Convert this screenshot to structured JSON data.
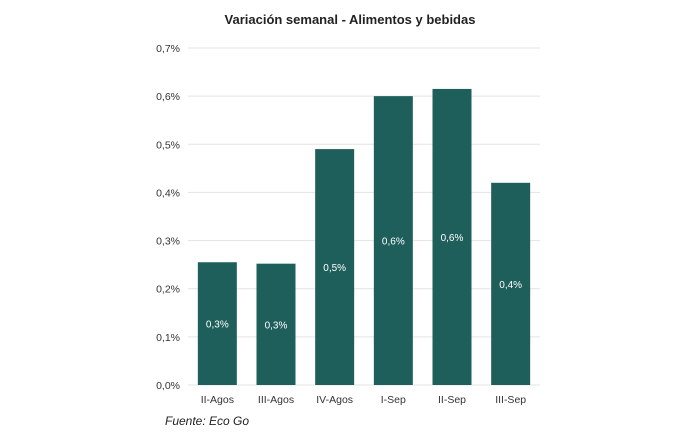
{
  "chart_data": {
    "type": "bar",
    "title": "Variación semanal - Alimentos y bebidas",
    "xlabel": "",
    "ylabel": "",
    "categories": [
      "II-Agos",
      "III-Agos",
      "IV-Agos",
      "I-Sep",
      "II-Sep",
      "III-Sep"
    ],
    "values": [
      0.255,
      0.252,
      0.49,
      0.6,
      0.615,
      0.42
    ],
    "data_labels": [
      "0,3%",
      "0,3%",
      "0,5%",
      "0,6%",
      "0,6%",
      "0,4%"
    ],
    "ylim": [
      0,
      0.7
    ],
    "yticks": [
      0,
      0.1,
      0.2,
      0.3,
      0.4,
      0.5,
      0.6,
      0.7
    ],
    "ytick_labels": [
      "0,0%",
      "0,1%",
      "0,2%",
      "0,3%",
      "0,4%",
      "0,5%",
      "0,6%",
      "0,7%"
    ],
    "grid": true,
    "bar_color": "#1f5f5b",
    "source": "Fuente: Eco Go"
  }
}
